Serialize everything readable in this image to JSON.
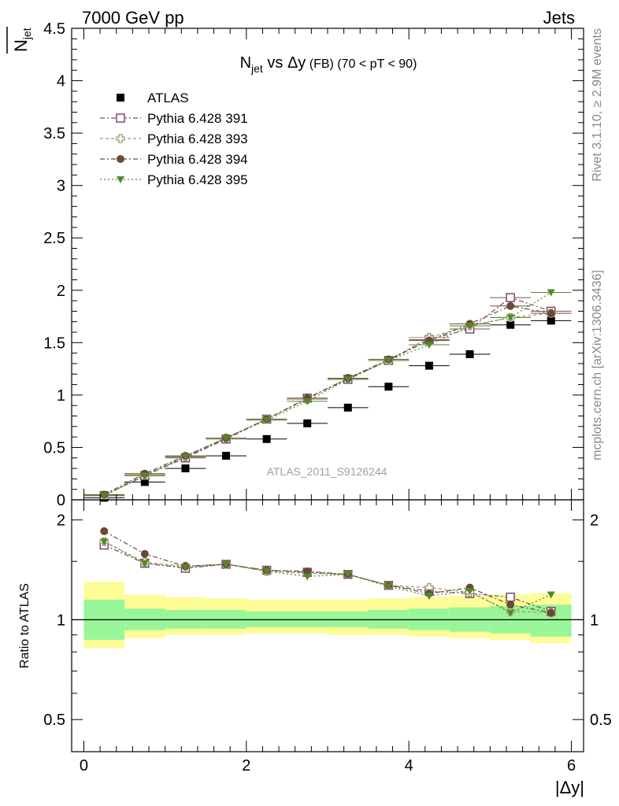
{
  "header": {
    "left": "7000 GeV pp",
    "right": "Jets"
  },
  "side_labels": {
    "rivet": "Rivet 3.1.10, ≥ 2.9M events",
    "mcplots": "mcplots.cern.ch [arXiv:1306.3436]"
  },
  "watermark": "ATLAS_2011_S9126244",
  "chart_data": [
    {
      "type": "scatter",
      "title": {
        "n": "N",
        "sub": "jet",
        "rest": " vs Δy",
        "small": " (FB)",
        "cut": " (70 < pT <  90)"
      },
      "ylabel": {
        "n": "N",
        "sub": "jet"
      },
      "xlim": [
        -0.15,
        6.15
      ],
      "ylim": [
        0,
        4.5
      ],
      "yticks": [
        "0",
        "0.5",
        "1",
        "1.5",
        "2",
        "2.5",
        "3",
        "3.5",
        "4",
        "4.5"
      ],
      "ytick_values": [
        0,
        0.5,
        1,
        1.5,
        2,
        2.5,
        3,
        3.5,
        4,
        4.5
      ],
      "x": [
        0.25,
        0.75,
        1.25,
        1.75,
        2.25,
        2.75,
        3.25,
        3.75,
        4.25,
        4.75,
        5.25,
        5.75
      ],
      "legend_position": "top-left",
      "series": [
        {
          "name": "ATLAS",
          "marker": "square-filled",
          "color": "#000000",
          "values": [
            0.02,
            0.17,
            0.3,
            0.42,
            0.58,
            0.73,
            0.88,
            1.08,
            1.28,
            1.39,
            1.67,
            1.71
          ]
        },
        {
          "name": "Pythia 6.428 391",
          "marker": "square-open",
          "color": "#7a4a6a",
          "dash": "6,3,2,3",
          "values": [
            0.04,
            0.23,
            0.4,
            0.58,
            0.77,
            0.97,
            1.15,
            1.33,
            1.53,
            1.63,
            1.93,
            1.8
          ]
        },
        {
          "name": "Pythia 6.428 393",
          "marker": "cross-open",
          "color": "#9c9a6a",
          "dash": "4,3",
          "values": [
            0.04,
            0.24,
            0.41,
            0.59,
            0.77,
            0.96,
            1.16,
            1.33,
            1.55,
            1.66,
            1.74,
            1.78
          ]
        },
        {
          "name": "Pythia 6.428 394",
          "marker": "circle-filled",
          "color": "#6b4a35",
          "dash": "6,3,2,3",
          "values": [
            0.05,
            0.25,
            0.42,
            0.59,
            0.77,
            0.97,
            1.16,
            1.34,
            1.52,
            1.68,
            1.85,
            1.78
          ]
        },
        {
          "name": "Pythia 6.428 395",
          "marker": "triangle-down",
          "color": "#4f8a2a",
          "dash": "2,3",
          "values": [
            0.04,
            0.23,
            0.41,
            0.59,
            0.76,
            0.94,
            1.15,
            1.33,
            1.48,
            1.66,
            1.74,
            1.98
          ]
        }
      ]
    },
    {
      "type": "scatter",
      "ylabel": "Ratio to ATLAS",
      "xlabel": "|Δy|",
      "xlim": [
        -0.15,
        6.15
      ],
      "ylim": [
        0.4,
        2.3
      ],
      "log_y": true,
      "xticks": [
        "0",
        "2",
        "4",
        "6"
      ],
      "xtick_values": [
        0,
        2,
        4,
        6
      ],
      "yticks": [
        "0.5",
        "1",
        "2"
      ],
      "ytick_values": [
        0.5,
        1,
        2
      ],
      "bands": {
        "x_edges": [
          0,
          0.5,
          1,
          1.5,
          2,
          2.5,
          3,
          3.5,
          4,
          4.5,
          5,
          5.5,
          6
        ],
        "stat_low": [
          0.87,
          0.93,
          0.94,
          0.94,
          0.95,
          0.95,
          0.95,
          0.94,
          0.93,
          0.92,
          0.91,
          0.89
        ],
        "stat_high": [
          1.15,
          1.08,
          1.07,
          1.07,
          1.06,
          1.06,
          1.06,
          1.07,
          1.08,
          1.09,
          1.1,
          1.11
        ],
        "syst_low": [
          0.82,
          0.88,
          0.9,
          0.9,
          0.91,
          0.91,
          0.9,
          0.9,
          0.89,
          0.88,
          0.87,
          0.85
        ],
        "syst_high": [
          1.3,
          1.19,
          1.17,
          1.16,
          1.15,
          1.15,
          1.15,
          1.16,
          1.17,
          1.18,
          1.19,
          1.2
        ],
        "stat_color": "#99f599",
        "syst_color": "#fdfc96"
      },
      "x": [
        0.25,
        0.75,
        1.25,
        1.75,
        2.25,
        2.75,
        3.25,
        3.75,
        4.25,
        4.75,
        5.25,
        5.75
      ],
      "series": [
        {
          "name": "Pythia 6.428 391",
          "marker": "square-open",
          "color": "#7a4a6a",
          "dash": "6,3,2,3",
          "values": [
            1.68,
            1.48,
            1.43,
            1.47,
            1.41,
            1.39,
            1.37,
            1.27,
            1.22,
            1.2,
            1.17,
            1.06
          ]
        },
        {
          "name": "Pythia 6.428 393",
          "marker": "cross-open",
          "color": "#9c9a6a",
          "dash": "4,3",
          "values": [
            1.72,
            1.49,
            1.45,
            1.47,
            1.4,
            1.38,
            1.37,
            1.27,
            1.25,
            1.21,
            1.06,
            1.05
          ]
        },
        {
          "name": "Pythia 6.428 394",
          "marker": "circle-filled",
          "color": "#6b4a35",
          "dash": "6,3,2,3",
          "values": [
            1.85,
            1.58,
            1.45,
            1.47,
            1.41,
            1.4,
            1.37,
            1.27,
            1.2,
            1.25,
            1.11,
            1.05
          ]
        },
        {
          "name": "Pythia 6.428 395",
          "marker": "triangle-down",
          "color": "#4f8a2a",
          "dash": "2,3",
          "values": [
            1.72,
            1.48,
            1.44,
            1.47,
            1.4,
            1.35,
            1.37,
            1.26,
            1.18,
            1.22,
            1.05,
            1.19
          ]
        }
      ]
    }
  ]
}
